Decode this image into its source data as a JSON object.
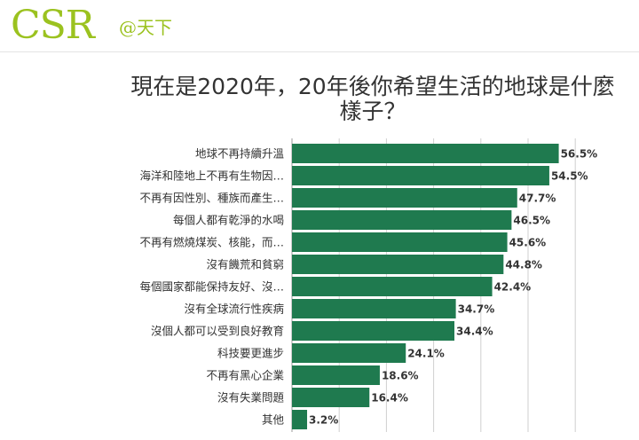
{
  "brand": {
    "logo": "CSR",
    "logo_sub": "@天下",
    "color": "#9bc21f"
  },
  "chart_data": {
    "type": "bar",
    "orientation": "horizontal",
    "title": "現在是2020年，20年後你希望生活的地球是什麼樣子？",
    "categories": [
      "地球不再持續升溫",
      "海洋和陸地上不再有生物因…",
      "不再有因性別、種族而產生…",
      "每個人都有乾淨的水喝",
      "不再有燃燒煤炭、核能，而…",
      "沒有饑荒和貧窮",
      "每個國家都能保持友好、沒…",
      "沒有全球流行性疾病",
      "沒個人都可以受到良好教育",
      "科技要更進步",
      "不再有黑心企業",
      "沒有失業問題",
      "其他"
    ],
    "values": [
      56.5,
      54.5,
      47.7,
      46.5,
      45.6,
      44.8,
      42.4,
      34.7,
      34.4,
      24.1,
      18.6,
      16.4,
      3.2
    ],
    "value_labels": [
      "56.5%",
      "54.5%",
      "47.7%",
      "46.5%",
      "45.6%",
      "44.8%",
      "42.4%",
      "34.7%",
      "34.4%",
      "24.1%",
      "18.6%",
      "16.4%",
      "3.2%"
    ],
    "xlim": [
      0,
      60
    ],
    "grid": true,
    "bar_color": "#1f7a4f"
  }
}
